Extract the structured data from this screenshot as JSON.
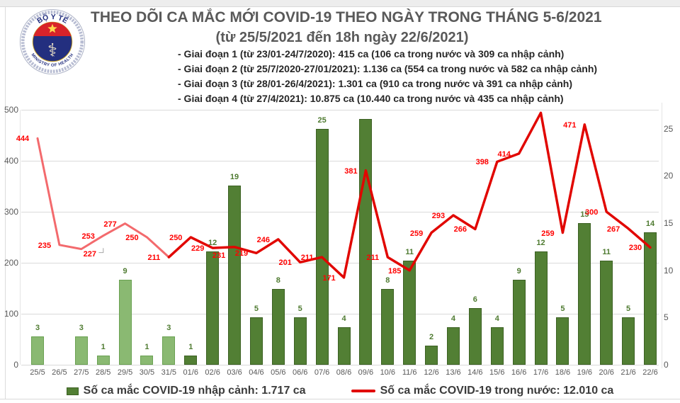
{
  "logo": {
    "top_text": "BỘ Y TẾ",
    "bottom_text": "MINISTRY OF HEALTH"
  },
  "header": {
    "title": "THEO DÕI CA MẮC MỚI COVID-19 THEO NGÀY TRONG THÁNG 5-6/2021",
    "subtitle": "(từ 25/5/2021 đến 18h ngày 22/6/2021)"
  },
  "notes": [
    "- Giai đoạn 1 (từ 23/01-24/7/2020): 415 ca (106 ca trong nước và 309 ca nhập cảnh)",
    "- Giai đoạn 2 (từ 25/7/2020-27/01/2021): 1.136 ca (554 ca trong nước và 582 ca nhập cảnh)",
    "- Giai đoạn 3 (từ 28/01-26/4/2021): 1.301 ca (910 ca trong nước và 391 ca nhập cảnh)",
    "- Giai đoạn 4 (từ 27/4/2021): 10.875 ca (10.440 ca trong nước và 435 ca nhập cảnh)"
  ],
  "legend": {
    "bar_label": "Số ca mắc COVID-19 nhập cảnh: 1.717 ca",
    "line_label": "Số ca mắc COVID-19 trong nước: 12.010 ca"
  },
  "colors": {
    "bar_light": "#8ab972",
    "bar_light_border": "#6aa152",
    "bar_dark": "#527f34",
    "bar_dark_border": "#3c6123",
    "line_light": "#f36a6d",
    "line_dark": "#e10600",
    "label_red": "#ff0000",
    "label_green": "#4f7b31",
    "axis_text": "#595959",
    "gridline": "#dadada",
    "title_text": "#595959",
    "notes_text": "#262626",
    "legend_text": "#3b3b3b"
  },
  "chart_data": {
    "type": "bar+line combo",
    "title": "THEO DÕI CA MẮC MỚI COVID-19 THEO NGÀY TRONG THÁNG 5-6/2021",
    "subtitle": "(từ 25/5/2021 đến 18h ngày 22/6/2021)",
    "grid": "horizontal only",
    "legend_position": "bottom",
    "categories": [
      "25/5",
      "26/5",
      "27/5",
      "28/5",
      "29/5",
      "30/5",
      "31/5",
      "01/6",
      "02/6",
      "03/6",
      "04/6",
      "05/6",
      "06/6",
      "07/6",
      "08/6",
      "09/6",
      "10/6",
      "11/6",
      "12/6",
      "13/6",
      "14/6",
      "15/6",
      "16/6",
      "17/6",
      "18/6",
      "19/6",
      "20/6",
      "21/6",
      "22/6"
    ],
    "series": [
      {
        "name": "Số ca mắc COVID-19 nhập cảnh",
        "type": "bar",
        "axis": "right",
        "values": [
          3,
          0,
          3,
          1,
          9,
          1,
          3,
          1,
          12,
          19,
          5,
          8,
          5,
          25,
          4,
          26,
          8,
          11,
          2,
          4,
          6,
          4,
          9,
          12,
          5,
          15,
          11,
          5,
          14
        ],
        "labels": [
          "3",
          "",
          "3",
          "1",
          "9",
          "1",
          "3",
          "1",
          "12",
          "19",
          "5",
          "8",
          "5",
          "25",
          "4",
          "",
          "8",
          "11",
          "2",
          "4",
          "6",
          "4",
          "9",
          "12",
          "5",
          "15",
          "11",
          "5",
          "14"
        ],
        "light_style_count": 7
      },
      {
        "name": "Số ca mắc COVID-19 trong nước",
        "type": "line",
        "axis": "left",
        "values": [
          444,
          235,
          227,
          253,
          277,
          250,
          211,
          250,
          229,
          231,
          219,
          246,
          201,
          211,
          171,
          381,
          211,
          185,
          259,
          293,
          266,
          398,
          414,
          494,
          259,
          471,
          300,
          267,
          230
        ],
        "labels": [
          "444",
          "235",
          "227",
          "253",
          "277",
          "250",
          "211",
          "250",
          "229",
          "231",
          "219",
          "246",
          "201",
          "211",
          "171",
          "381",
          "211",
          "185",
          "259",
          "293",
          "266",
          "398",
          "414",
          "",
          "259",
          "471",
          "300",
          "267",
          "230"
        ],
        "light_style_until_index": 6,
        "label_pos_overrides": {
          "2": "below-right",
          "9": "below-left"
        },
        "leader_line_index": 2
      }
    ],
    "left_axis": {
      "ticks": [
        0,
        100,
        200,
        300,
        400,
        500
      ],
      "min": 0,
      "max": 500
    },
    "right_axis": {
      "ticks": [
        0,
        5,
        10,
        15,
        20,
        25
      ],
      "min": 0,
      "max": 27
    }
  }
}
